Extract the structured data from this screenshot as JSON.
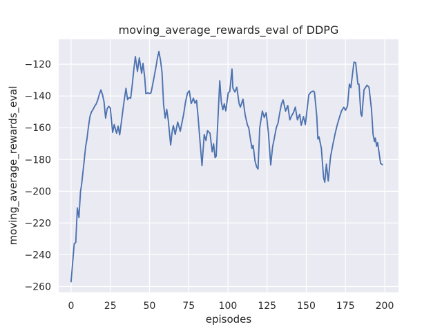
{
  "colors": {
    "figure_bg": "#ffffff",
    "axes_bg": "#eaeaf2",
    "grid": "#ffffff",
    "line": "#4c72b0",
    "text": "#262626"
  },
  "chart_data": {
    "type": "line",
    "title": "moving_average_rewards_eval of DDPG",
    "xlabel": "episodes",
    "ylabel": "moving_average_rewards_eval",
    "grid": true,
    "legend": "none",
    "style": "seaborn-darkgrid",
    "xticks": [
      0,
      25,
      50,
      75,
      100,
      125,
      150,
      175,
      200
    ],
    "xtick_labels": [
      "0",
      "25",
      "50",
      "75",
      "100",
      "125",
      "150",
      "175",
      "200"
    ],
    "yticks": [
      -120,
      -140,
      -160,
      -180,
      -200,
      -220,
      -240,
      -260
    ],
    "ytick_labels": [
      "−120",
      "−140",
      "−160",
      "−180",
      "−200",
      "−220",
      "−240",
      "−260"
    ],
    "xlim": [
      -7.9,
      208.8
    ],
    "ylim": [
      -263.7,
      -104.3
    ],
    "series": [
      {
        "name": "moving_average_rewards_eval",
        "color": "#4c72b0",
        "points": [
          [
            0,
            -257
          ],
          [
            1,
            -245
          ],
          [
            2,
            -233
          ],
          [
            3,
            -232.3
          ],
          [
            4,
            -210.5
          ],
          [
            5,
            -216.5
          ],
          [
            6,
            -200
          ],
          [
            6.7,
            -196
          ],
          [
            8.2,
            -182
          ],
          [
            9.3,
            -171.5
          ],
          [
            10,
            -168
          ],
          [
            11,
            -160
          ],
          [
            12,
            -153
          ],
          [
            13,
            -150
          ],
          [
            14,
            -148.5
          ],
          [
            15,
            -146.5
          ],
          [
            16,
            -145
          ],
          [
            17,
            -142.5
          ],
          [
            18,
            -139
          ],
          [
            19,
            -136.2
          ],
          [
            20,
            -139
          ],
          [
            21,
            -143.5
          ],
          [
            22,
            -154
          ],
          [
            23,
            -148
          ],
          [
            24,
            -146.5
          ],
          [
            25,
            -147.5
          ],
          [
            26.5,
            -163
          ],
          [
            27.5,
            -158
          ],
          [
            29,
            -163.5
          ],
          [
            30,
            -159
          ],
          [
            31,
            -164.5
          ],
          [
            32,
            -157
          ],
          [
            33,
            -149
          ],
          [
            34,
            -142
          ],
          [
            35,
            -135.2
          ],
          [
            36,
            -142.3
          ],
          [
            37,
            -141
          ],
          [
            38,
            -141.5
          ],
          [
            39,
            -133
          ],
          [
            40,
            -123
          ],
          [
            41,
            -115.2
          ],
          [
            42.3,
            -124.5
          ],
          [
            43.5,
            -116
          ],
          [
            45,
            -125.7
          ],
          [
            45.9,
            -119.4
          ],
          [
            47,
            -128.6
          ],
          [
            47.7,
            -138.5
          ],
          [
            49,
            -138
          ],
          [
            50,
            -138.5
          ],
          [
            51,
            -138
          ],
          [
            52,
            -133
          ],
          [
            54,
            -122.5
          ],
          [
            55,
            -116.5
          ],
          [
            56,
            -112
          ],
          [
            57,
            -117.5
          ],
          [
            58,
            -125
          ],
          [
            59,
            -145.5
          ],
          [
            60,
            -154
          ],
          [
            61,
            -148.4
          ],
          [
            62,
            -155.4
          ],
          [
            63.5,
            -170.9
          ],
          [
            64.5,
            -162
          ],
          [
            65.2,
            -158.6
          ],
          [
            66.4,
            -164.3
          ],
          [
            68,
            -156.4
          ],
          [
            69.6,
            -162.2
          ],
          [
            71.8,
            -151.3
          ],
          [
            73,
            -143.5
          ],
          [
            74.3,
            -138
          ],
          [
            75.4,
            -136.8
          ],
          [
            76.6,
            -144.8
          ],
          [
            78,
            -141.4
          ],
          [
            79,
            -144.5
          ],
          [
            80,
            -142.8
          ],
          [
            81,
            -153
          ],
          [
            82,
            -165.8
          ],
          [
            83.5,
            -183.9
          ],
          [
            84.9,
            -164.3
          ],
          [
            86,
            -168
          ],
          [
            87,
            -161.8
          ],
          [
            88.6,
            -163.5
          ],
          [
            90,
            -175.2
          ],
          [
            90.9,
            -170.1
          ],
          [
            91.8,
            -178.8
          ],
          [
            92.5,
            -178
          ],
          [
            94.8,
            -130.4
          ],
          [
            95.8,
            -143.7
          ],
          [
            96.8,
            -148.7
          ],
          [
            97.7,
            -144.9
          ],
          [
            98.7,
            -149.4
          ],
          [
            100.2,
            -138
          ],
          [
            101.2,
            -137.2
          ],
          [
            102.6,
            -123
          ],
          [
            103.2,
            -135
          ],
          [
            104.5,
            -137.5
          ],
          [
            105.7,
            -134.5
          ],
          [
            107.2,
            -145
          ],
          [
            108,
            -147
          ],
          [
            109.6,
            -142
          ],
          [
            111,
            -152
          ],
          [
            112.5,
            -158.5
          ],
          [
            113.3,
            -160
          ],
          [
            114.5,
            -168
          ],
          [
            115.4,
            -173
          ],
          [
            116.1,
            -171
          ],
          [
            117.3,
            -181
          ],
          [
            118.3,
            -184.5
          ],
          [
            119.2,
            -186
          ],
          [
            120.3,
            -160
          ],
          [
            122,
            -149.5
          ],
          [
            123.2,
            -153.5
          ],
          [
            124.4,
            -150.5
          ],
          [
            125.8,
            -163
          ],
          [
            127.3,
            -183.5
          ],
          [
            128.5,
            -172
          ],
          [
            129.5,
            -167
          ],
          [
            130.9,
            -160
          ],
          [
            132,
            -157
          ],
          [
            133,
            -151
          ],
          [
            134.2,
            -145
          ],
          [
            135.2,
            -142.5
          ],
          [
            136.8,
            -149.5
          ],
          [
            138.2,
            -146
          ],
          [
            139.5,
            -155
          ],
          [
            140.6,
            -152.5
          ],
          [
            141.8,
            -150.5
          ],
          [
            143,
            -147
          ],
          [
            144.3,
            -155
          ],
          [
            145.8,
            -151.5
          ],
          [
            146.8,
            -158.5
          ],
          [
            148.2,
            -153
          ],
          [
            149.4,
            -158
          ],
          [
            151.6,
            -139.3
          ],
          [
            153,
            -137.5
          ],
          [
            154.5,
            -136.9
          ],
          [
            155.2,
            -137.5
          ],
          [
            156.7,
            -152.9
          ],
          [
            157.4,
            -167.1
          ],
          [
            158.1,
            -165.7
          ],
          [
            159.6,
            -172.9
          ],
          [
            161,
            -191.4
          ],
          [
            161.8,
            -194.3
          ],
          [
            162.8,
            -182.9
          ],
          [
            164,
            -193.6
          ],
          [
            165.4,
            -178.6
          ],
          [
            166.9,
            -170.7
          ],
          [
            168.4,
            -163.6
          ],
          [
            169.8,
            -157.9
          ],
          [
            171.3,
            -152.9
          ],
          [
            172.5,
            -149.3
          ],
          [
            173.9,
            -147.1
          ],
          [
            175,
            -149
          ],
          [
            176.3,
            -146.2
          ],
          [
            177.5,
            -132.5
          ],
          [
            178.4,
            -134.8
          ],
          [
            180.4,
            -118.7
          ],
          [
            181.5,
            -119
          ],
          [
            182.9,
            -132.5
          ],
          [
            183.6,
            -132.5
          ],
          [
            184.8,
            -151.3
          ],
          [
            185.4,
            -152.8
          ],
          [
            186.8,
            -136.1
          ],
          [
            188.7,
            -133.2
          ],
          [
            190,
            -134.5
          ],
          [
            191.6,
            -148.4
          ],
          [
            192.6,
            -164.3
          ],
          [
            193.5,
            -168.7
          ],
          [
            194,
            -166.5
          ],
          [
            194.9,
            -171.6
          ],
          [
            195.5,
            -169.4
          ],
          [
            197.4,
            -182.5
          ],
          [
            198.5,
            -183.2
          ]
        ]
      }
    ]
  }
}
